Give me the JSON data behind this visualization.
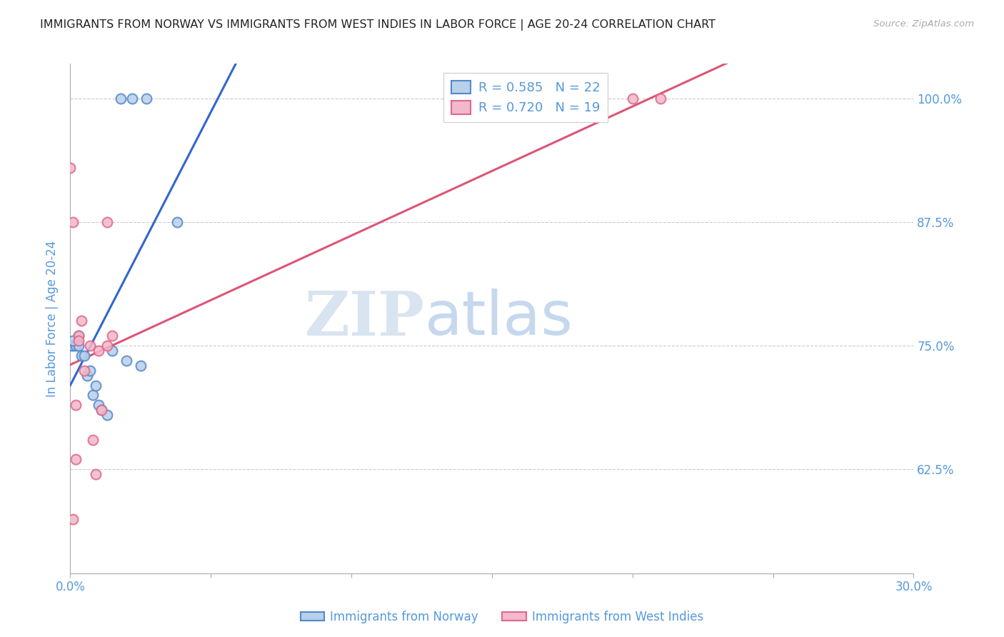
{
  "title": "IMMIGRANTS FROM NORWAY VS IMMIGRANTS FROM WEST INDIES IN LABOR FORCE | AGE 20-24 CORRELATION CHART",
  "source": "Source: ZipAtlas.com",
  "ylabel": "In Labor Force | Age 20-24",
  "xmin": 0.0,
  "xmax": 0.3,
  "ymin": 0.52,
  "ymax": 1.035,
  "yticks": [
    0.625,
    0.75,
    0.875,
    1.0
  ],
  "ytick_labels": [
    "62.5%",
    "75.0%",
    "87.5%",
    "100.0%"
  ],
  "xticks": [
    0.0,
    0.05,
    0.1,
    0.15,
    0.2,
    0.25,
    0.3
  ],
  "norway_color": "#b8d0ea",
  "norway_edge_color": "#5588cc",
  "wi_color": "#f2b8cb",
  "wi_edge_color": "#e06888",
  "norway_line_color": "#3366cc",
  "wi_line_color": "#dd5577",
  "norway_R": 0.585,
  "norway_N": 22,
  "wi_R": 0.72,
  "wi_N": 19,
  "norway_scatter_x": [
    0.018,
    0.022,
    0.027,
    0.038,
    0.0,
    0.001,
    0.002,
    0.003,
    0.003,
    0.004,
    0.005,
    0.006,
    0.007,
    0.008,
    0.009,
    0.01,
    0.011,
    0.013,
    0.015,
    0.02,
    0.025,
    0.001
  ],
  "norway_scatter_y": [
    1.0,
    1.0,
    1.0,
    0.875,
    0.75,
    0.75,
    0.75,
    0.76,
    0.75,
    0.74,
    0.74,
    0.72,
    0.725,
    0.7,
    0.71,
    0.69,
    0.685,
    0.68,
    0.745,
    0.735,
    0.73,
    0.755
  ],
  "wi_scatter_x": [
    0.0,
    0.001,
    0.003,
    0.013,
    0.2,
    0.21,
    0.003,
    0.004,
    0.005,
    0.007,
    0.008,
    0.009,
    0.01,
    0.011,
    0.013,
    0.015,
    0.002,
    0.002,
    0.001
  ],
  "wi_scatter_y": [
    0.93,
    0.875,
    0.76,
    0.875,
    1.0,
    1.0,
    0.755,
    0.775,
    0.725,
    0.75,
    0.655,
    0.62,
    0.745,
    0.685,
    0.75,
    0.76,
    0.69,
    0.635,
    0.575
  ],
  "legend_norway_label": "Immigrants from Norway",
  "legend_wi_label": "Immigrants from West Indies",
  "watermark_zip": "ZIP",
  "watermark_atlas": "atlas",
  "background_color": "#ffffff",
  "grid_color": "#cccccc",
  "axis_color": "#5599dd",
  "title_color": "#222222",
  "marker_size": 100
}
